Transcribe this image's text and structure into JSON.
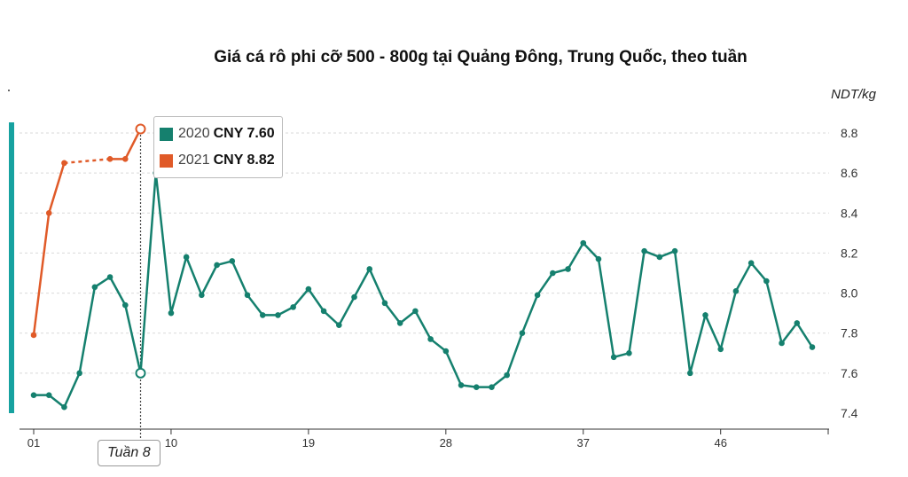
{
  "title": "Giá cá rô phi cỡ 500 - 800g tại Quảng Đông, Trung Quốc, theo tuần",
  "unit": "NDT/kg",
  "tooltip": {
    "rows": [
      {
        "year": "2020",
        "value": "CNY 7.60",
        "color": "#15806e"
      },
      {
        "year": "2021",
        "value": "CNY 8.82",
        "color": "#e05a28"
      }
    ]
  },
  "hover_label": "Tuần 8",
  "chart_data": {
    "type": "line",
    "title": "Giá cá rô phi cỡ 500 - 800g tại Quảng Đông, Trung Quốc, theo tuần",
    "xlabel": "",
    "ylabel": "NDT/kg",
    "ylim": [
      7.4,
      8.9
    ],
    "xlim": [
      1,
      52
    ],
    "grid": true,
    "x_ticks": [
      {
        "x": 1,
        "label": "01"
      },
      {
        "x": 10,
        "label": "10"
      },
      {
        "x": 19,
        "label": "19"
      },
      {
        "x": 28,
        "label": "28"
      },
      {
        "x": 37,
        "label": "37"
      },
      {
        "x": 46,
        "label": "46"
      }
    ],
    "y_ticks": [
      7.4,
      7.6,
      7.8,
      8.0,
      8.2,
      8.4,
      8.6,
      8.8
    ],
    "y_tick_labels": [
      "7.4",
      "7.6",
      "7.8",
      "8.0",
      "8.2",
      "8.4",
      "8.6",
      "8.8"
    ],
    "hover_week": 8,
    "series": [
      {
        "name": "2020",
        "color": "#15806e",
        "x": [
          1,
          2,
          3,
          4,
          5,
          6,
          7,
          8,
          9,
          10,
          11,
          12,
          13,
          14,
          15,
          16,
          17,
          18,
          19,
          20,
          21,
          22,
          23,
          24,
          25,
          26,
          27,
          28,
          29,
          30,
          31,
          32,
          33,
          34,
          35,
          36,
          37,
          38,
          39,
          40,
          41,
          42,
          43,
          44,
          45,
          46,
          47,
          48,
          49,
          50,
          51,
          52
        ],
        "values": [
          7.49,
          7.49,
          7.43,
          7.6,
          8.03,
          8.08,
          7.94,
          7.6,
          8.6,
          7.9,
          8.18,
          7.99,
          8.14,
          8.16,
          7.99,
          7.89,
          7.89,
          7.93,
          8.02,
          7.91,
          7.84,
          7.98,
          8.12,
          7.95,
          7.85,
          7.91,
          7.77,
          7.71,
          7.54,
          7.53,
          7.53,
          7.59,
          7.8,
          7.99,
          8.1,
          8.12,
          8.25,
          8.17,
          7.68,
          7.7,
          8.21,
          8.18,
          8.21,
          7.6,
          7.89,
          7.72,
          8.01,
          8.15,
          8.06,
          7.75,
          7.85,
          7.73
        ]
      },
      {
        "name": "2021",
        "color": "#e05a28",
        "x": [
          1,
          2,
          3,
          6,
          7,
          8
        ],
        "values": [
          7.79,
          8.4,
          8.65,
          8.67,
          8.67,
          8.82
        ],
        "gap_after_index": 2
      }
    ]
  }
}
